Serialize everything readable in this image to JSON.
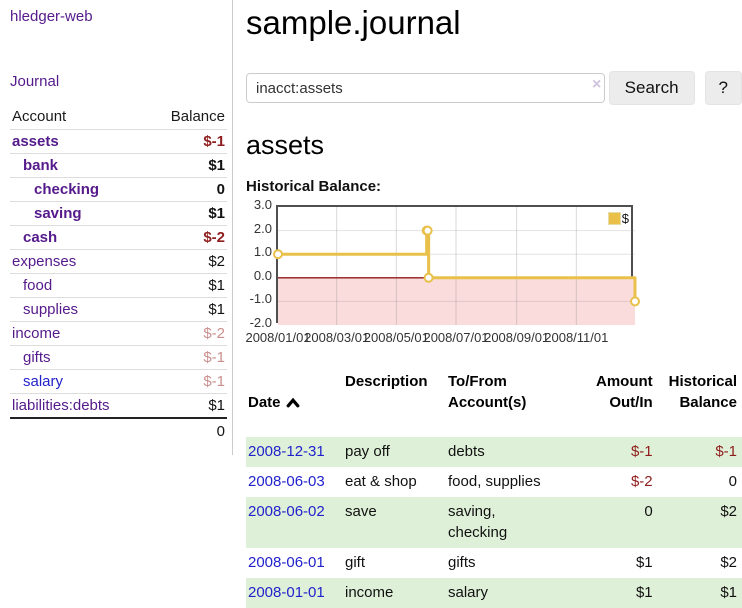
{
  "colors": {
    "link_purple": "#551a8b",
    "link_blue": "#2222cc",
    "amount_negative": "#8f1d1d",
    "amount_negative_faded": "#c9908f",
    "row_highlight_green": "#dff0d8",
    "chart_line_gold": "#e9c04a",
    "chart_negative_region_pink": "#fbdcdc",
    "chart_zero_line_red": "#8b1a1a",
    "button_gray": "#ececec"
  },
  "sidebar": {
    "brand": "hledger-web",
    "journal_link": "Journal",
    "accounts_table": {
      "headers": {
        "account": "Account",
        "balance": "Balance"
      },
      "rows": [
        {
          "name": "assets",
          "depth": 1,
          "bold": true,
          "balance": "$-1",
          "balance_style": "neg-strong"
        },
        {
          "name": "bank",
          "depth": 2,
          "bold": true,
          "balance": "$1",
          "balance_style": "pos"
        },
        {
          "name": "checking",
          "depth": 3,
          "bold": true,
          "balance": "0",
          "balance_style": "pos"
        },
        {
          "name": "saving",
          "depth": 3,
          "bold": true,
          "balance": "$1",
          "balance_style": "pos"
        },
        {
          "name": "cash",
          "depth": 2,
          "bold": true,
          "balance": "$-2",
          "balance_style": "neg-strong"
        },
        {
          "name": "expenses",
          "depth": 1,
          "bold": false,
          "balance": "$2",
          "balance_style": "pos"
        },
        {
          "name": "food",
          "depth": 2,
          "bold": false,
          "balance": "$1",
          "balance_style": "pos"
        },
        {
          "name": "supplies",
          "depth": 2,
          "bold": false,
          "balance": "$1",
          "balance_style": "pos"
        },
        {
          "name": "income",
          "depth": 1,
          "bold": false,
          "balance": "$-2",
          "balance_style": "neg-faded"
        },
        {
          "name": "gifts",
          "depth": 2,
          "bold": false,
          "balance": "$-1",
          "balance_style": "neg-faded"
        },
        {
          "name": "salary",
          "depth": 2,
          "bold": false,
          "link_color": "blue",
          "balance": "$-1",
          "balance_style": "neg-faded"
        },
        {
          "name": "liabilities:debts",
          "depth": 1,
          "bold": false,
          "balance": "$1",
          "balance_style": "pos"
        }
      ],
      "total": "0"
    }
  },
  "header": {
    "title": "sample.journal"
  },
  "search": {
    "value": "inacct:assets",
    "clear_icon": "×",
    "button_label": "Search",
    "help_label": "?"
  },
  "account_page": {
    "heading": "assets",
    "chart_label": "Historical Balance:"
  },
  "chart_data": {
    "type": "line",
    "step": true,
    "title": "Historical Balance:",
    "legend": [
      {
        "label": "$",
        "color": "#e9c04a"
      }
    ],
    "x_domain": [
      "2008-01-01",
      "2008-12-31"
    ],
    "ylim": [
      -2,
      3
    ],
    "y_ticks": [
      "3.0",
      "2.0",
      "1.0",
      "0.0",
      "-1.0",
      "-2.0"
    ],
    "x_ticks": [
      "2008/01/01",
      "2008/03/01",
      "2008/05/01",
      "2008/07/01",
      "2008/09/01",
      "2008/11/01"
    ],
    "series": [
      {
        "name": "$",
        "points": [
          [
            "2008-01-01",
            1
          ],
          [
            "2008-06-01",
            2
          ],
          [
            "2008-06-02",
            2
          ],
          [
            "2008-06-03",
            0
          ],
          [
            "2008-12-31",
            -1
          ]
        ]
      }
    ],
    "grid": true,
    "negative_region_shaded": true,
    "legend_position": "top-right"
  },
  "transactions": {
    "columns": {
      "date": "Date",
      "description": "Description",
      "accounts": "To/From\nAccount(s)",
      "amount": "Amount\nOut/In",
      "balance": "Historical\nBalance"
    },
    "rows": [
      {
        "date": "2008-12-31",
        "description": "pay off",
        "accounts": "debts",
        "amount": "$-1",
        "amount_negative": true,
        "balance": "$-1",
        "balance_negative": true,
        "highlight": true
      },
      {
        "date": "2008-06-03",
        "description": "eat & shop",
        "accounts": "food, supplies",
        "amount": "$-2",
        "amount_negative": true,
        "balance": "0",
        "balance_negative": false,
        "highlight": false
      },
      {
        "date": "2008-06-02",
        "description": "save",
        "accounts": "saving,\nchecking",
        "amount": "0",
        "amount_negative": false,
        "balance": "$2",
        "balance_negative": false,
        "highlight": true
      },
      {
        "date": "2008-06-01",
        "description": "gift",
        "accounts": "gifts",
        "amount": "$1",
        "amount_negative": false,
        "balance": "$2",
        "balance_negative": false,
        "highlight": false
      },
      {
        "date": "2008-01-01",
        "description": "income",
        "accounts": "salary",
        "amount": "$1",
        "amount_negative": false,
        "balance": "$1",
        "balance_negative": false,
        "highlight": true
      }
    ]
  }
}
